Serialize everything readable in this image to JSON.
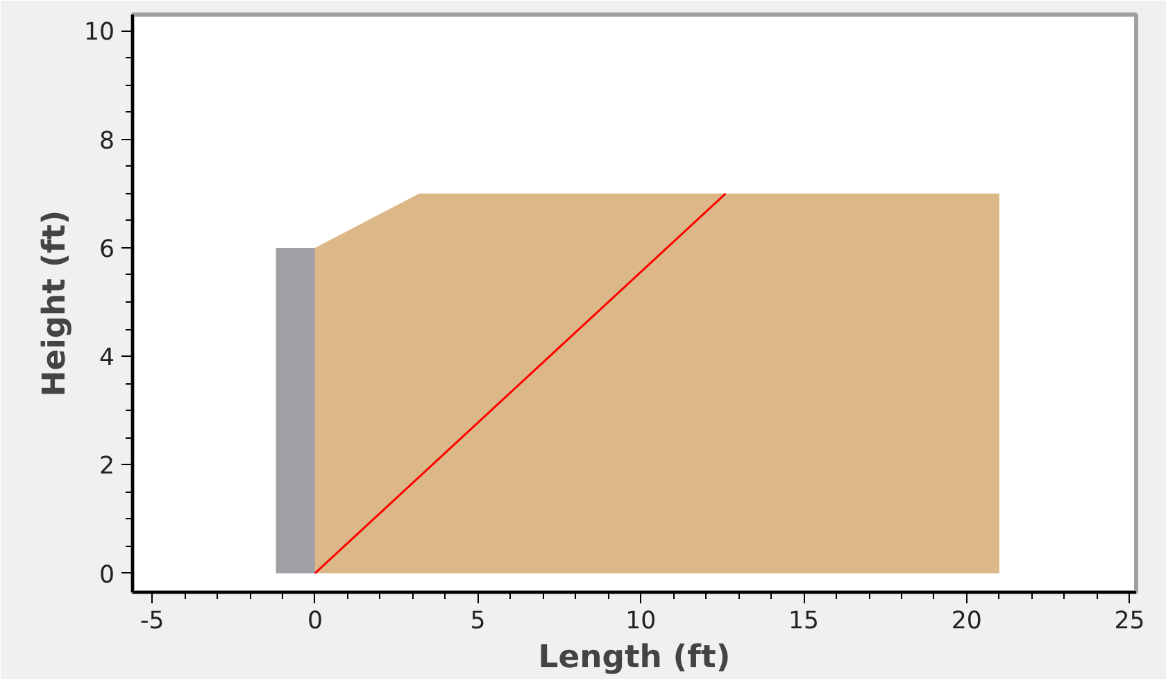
{
  "chart_data": {
    "type": "area",
    "xlabel": "Length (ft)",
    "ylabel": "Height (ft)",
    "xlim": [
      -5.6,
      25.2
    ],
    "ylim": [
      -0.35,
      10.3
    ],
    "xticks": [
      -5,
      0,
      5,
      10,
      15,
      20,
      25
    ],
    "yticks": [
      0,
      2,
      4,
      6,
      8,
      10
    ],
    "grid": false,
    "series": [
      {
        "color": "#a0a0a5",
        "x": [
          -1.2,
          0
        ],
        "values": [
          6,
          6
        ]
      },
      {
        "color": "#dcb787",
        "x": [
          0,
          3.2,
          21
        ],
        "values": [
          6,
          7,
          7
        ]
      },
      {
        "type": "line",
        "color": "#ff0000",
        "x": [
          0,
          12.6
        ],
        "values": [
          0,
          7
        ]
      }
    ]
  }
}
